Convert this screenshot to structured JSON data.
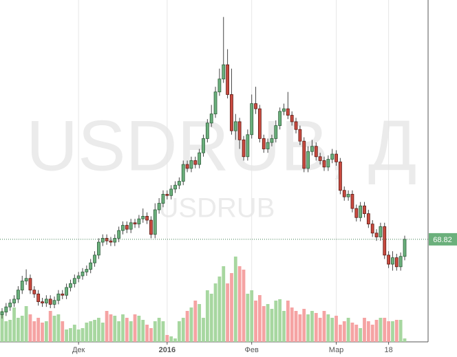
{
  "chart_data": {
    "type": "candlestick",
    "watermark": "USDRUB, Д",
    "symbol": "USDRUB",
    "last_price": 68.82,
    "ylim": [
      60.9,
      87.3
    ],
    "vlim": [
      0,
      497
    ],
    "categories": [
      null,
      null,
      null,
      null,
      null,
      null,
      null,
      null,
      null,
      null,
      null,
      null,
      null,
      null,
      null,
      null,
      null,
      null,
      null,
      "Дек",
      null,
      null,
      null,
      null,
      null,
      null,
      null,
      null,
      null,
      null,
      null,
      null,
      null,
      null,
      null,
      null,
      null,
      null,
      null,
      null,
      null,
      "2016",
      null,
      null,
      null,
      null,
      null,
      null,
      null,
      null,
      null,
      null,
      null,
      null,
      null,
      null,
      null,
      null,
      null,
      null,
      null,
      null,
      "Фев",
      null,
      null,
      null,
      null,
      null,
      null,
      null,
      null,
      null,
      null,
      null,
      null,
      null,
      null,
      null,
      null,
      null,
      null,
      null,
      null,
      "Мар",
      null,
      null,
      null,
      null,
      null,
      null,
      null,
      null,
      null,
      null,
      null,
      null,
      "18",
      null,
      null,
      null,
      null
    ],
    "open": [
      63.0,
      63.2,
      63.6,
      63.9,
      64.2,
      64.9,
      65.6,
      65.8,
      64.9,
      64.6,
      64.0,
      63.9,
      64.2,
      63.8,
      64.1,
      64.6,
      64.5,
      65.1,
      65.4,
      65.8,
      66.0,
      66.3,
      66.5,
      67.0,
      67.6,
      68.6,
      68.9,
      68.7,
      68.6,
      68.9,
      69.5,
      69.9,
      69.6,
      70.1,
      70.0,
      70.4,
      70.6,
      70.3,
      69.2,
      71.1,
      71.6,
      72.3,
      72.2,
      72.7,
      73.0,
      73.3,
      74.6,
      74.3,
      74.9,
      74.6,
      75.5,
      76.6,
      77.8,
      78.5,
      80.2,
      81.2,
      82.3,
      80.0,
      77.2,
      77.9,
      76.5,
      75.2,
      76.9,
      79.3,
      78.9,
      76.6,
      75.8,
      76.3,
      76.6,
      77.6,
      78.7,
      78.9,
      78.4,
      77.9,
      77.3,
      76.4,
      74.3,
      75.6,
      76.0,
      75.2,
      74.9,
      74.4,
      75.0,
      75.4,
      74.8,
      72.6,
      72.1,
      72.3,
      71.2,
      70.5,
      71.4,
      70.8,
      70.0,
      69.3,
      69.0,
      69.8,
      67.6,
      66.9,
      67.4,
      66.7,
      67.5
    ],
    "high": [
      63.5,
      63.9,
      64.2,
      64.5,
      65.2,
      66.0,
      66.5,
      66.1,
      65.2,
      64.9,
      64.3,
      64.5,
      64.5,
      64.4,
      64.9,
      64.9,
      65.4,
      65.7,
      66.1,
      66.3,
      66.6,
      66.8,
      67.3,
      67.9,
      68.9,
      69.2,
      69.2,
      69.0,
      69.2,
      69.8,
      70.2,
      70.2,
      70.4,
      70.4,
      70.7,
      71.2,
      70.9,
      70.6,
      71.6,
      72.0,
      72.6,
      72.6,
      73.0,
      73.3,
      73.6,
      74.9,
      74.9,
      75.2,
      75.2,
      75.8,
      76.9,
      78.1,
      79.2,
      80.6,
      82.0,
      85.99,
      83.5,
      82.0,
      78.5,
      78.2,
      76.8,
      77.3,
      80.0,
      80.6,
      79.2,
      76.9,
      76.6,
      76.9,
      78.0,
      79.0,
      79.3,
      80.2,
      78.7,
      78.2,
      77.6,
      76.7,
      76.0,
      76.5,
      76.3,
      75.5,
      75.2,
      75.3,
      75.8,
      75.7,
      75.1,
      72.9,
      72.6,
      72.6,
      71.5,
      71.7,
      71.7,
      71.1,
      70.3,
      69.6,
      70.1,
      70.1,
      67.9,
      67.9,
      67.7,
      67.8,
      69.1
    ],
    "low": [
      62.7,
      62.9,
      63.3,
      63.6,
      63.9,
      64.6,
      65.3,
      64.6,
      64.3,
      63.7,
      63.6,
      63.6,
      63.5,
      63.5,
      63.8,
      64.2,
      64.2,
      64.8,
      65.1,
      65.5,
      65.7,
      66.0,
      66.2,
      66.7,
      67.3,
      68.3,
      68.4,
      68.3,
      68.3,
      68.6,
      69.2,
      69.3,
      69.3,
      69.7,
      69.7,
      70.1,
      70.0,
      68.9,
      68.9,
      70.8,
      71.3,
      71.9,
      71.9,
      72.4,
      72.7,
      73.0,
      74.0,
      74.0,
      74.3,
      74.3,
      75.2,
      76.3,
      77.5,
      78.2,
      79.9,
      80.9,
      79.7,
      76.9,
      76.5,
      75.8,
      74.9,
      74.9,
      76.6,
      78.5,
      76.3,
      75.5,
      75.5,
      76.0,
      76.3,
      77.3,
      78.4,
      78.1,
      77.6,
      77.0,
      76.1,
      74.0,
      74.0,
      75.3,
      74.9,
      74.6,
      74.1,
      74.1,
      74.7,
      74.5,
      72.3,
      71.8,
      71.8,
      70.9,
      70.2,
      70.2,
      70.5,
      69.7,
      69.0,
      68.7,
      68.7,
      67.3,
      66.6,
      66.4,
      66.4,
      66.4,
      67.2
    ],
    "close": [
      63.2,
      63.6,
      63.9,
      64.2,
      64.9,
      65.6,
      65.8,
      64.9,
      64.6,
      64.0,
      63.9,
      64.2,
      63.8,
      64.1,
      64.6,
      64.5,
      65.1,
      65.4,
      65.8,
      66.0,
      66.3,
      66.5,
      67.0,
      67.6,
      68.6,
      68.9,
      68.7,
      68.6,
      68.9,
      69.5,
      69.9,
      69.6,
      70.1,
      70.0,
      70.4,
      70.6,
      70.3,
      69.2,
      71.1,
      71.6,
      72.3,
      72.2,
      72.7,
      73.0,
      73.3,
      74.6,
      74.3,
      74.9,
      74.6,
      75.5,
      76.6,
      77.8,
      78.5,
      80.2,
      81.2,
      82.3,
      80.0,
      77.2,
      77.9,
      76.5,
      75.2,
      76.9,
      79.3,
      78.9,
      76.6,
      75.8,
      76.3,
      76.6,
      77.6,
      78.7,
      78.9,
      78.4,
      77.9,
      77.3,
      76.4,
      74.3,
      75.6,
      76.0,
      75.2,
      74.9,
      74.4,
      75.0,
      75.4,
      74.8,
      72.6,
      72.1,
      72.3,
      71.2,
      70.5,
      71.4,
      70.8,
      70.0,
      69.3,
      69.0,
      69.8,
      67.6,
      66.9,
      67.4,
      66.7,
      67.5,
      68.82
    ],
    "volume": [
      45,
      30,
      32,
      50,
      35,
      38,
      52,
      40,
      30,
      35,
      28,
      30,
      45,
      38,
      40,
      30,
      18,
      20,
      25,
      18,
      20,
      28,
      30,
      32,
      35,
      28,
      45,
      40,
      38,
      30,
      40,
      35,
      30,
      40,
      38,
      32,
      25,
      20,
      30,
      35,
      30,
      10,
      8,
      5,
      30,
      35,
      45,
      50,
      60,
      55,
      35,
      75,
      70,
      85,
      95,
      110,
      85,
      100,
      124,
      110,
      105,
      70,
      75,
      60,
      68,
      52,
      55,
      48,
      60,
      62,
      45,
      60,
      50,
      45,
      40,
      48,
      40,
      45,
      42,
      35,
      45,
      40,
      35,
      38,
      25,
      30,
      35,
      28,
      25,
      20,
      35,
      30,
      25,
      32,
      35,
      35,
      30,
      30,
      32,
      32,
      5
    ],
    "up_color": "#6bb07c",
    "down_color": "#c94a3f",
    "up_volume_color": "#a7d7a0",
    "down_volume_color": "#f5a3a3"
  }
}
